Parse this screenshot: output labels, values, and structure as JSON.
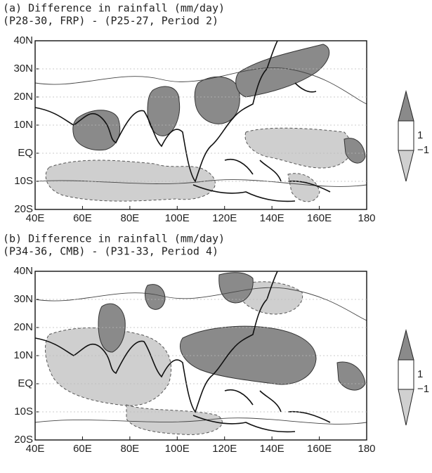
{
  "panels": [
    {
      "title": [
        "(a) Difference in rainfall (mm/day)",
        "(P28-30, FRP) - (P25-27, Period 2)"
      ],
      "x_labels": [
        "40E",
        "60E",
        "80E",
        "100E",
        "120E",
        "140E",
        "160E",
        "180"
      ],
      "y_labels": [
        "40N",
        "30N",
        "20N",
        "10N",
        "EQ",
        "10S",
        "20S"
      ],
      "legend_labels": [
        "1",
        "−1"
      ]
    },
    {
      "title": [
        "(b) Difference in rainfall (mm/day)",
        "(P34-36, CMB) - (P31-33, Period 4)"
      ],
      "x_labels": [
        "40E",
        "60E",
        "80E",
        "100E",
        "120E",
        "140E",
        "160E",
        "180"
      ],
      "y_labels": [
        "40N",
        "30N",
        "20N",
        "10N",
        "EQ",
        "10S",
        "20S"
      ],
      "legend_labels": [
        "1",
        "−1"
      ]
    }
  ]
}
